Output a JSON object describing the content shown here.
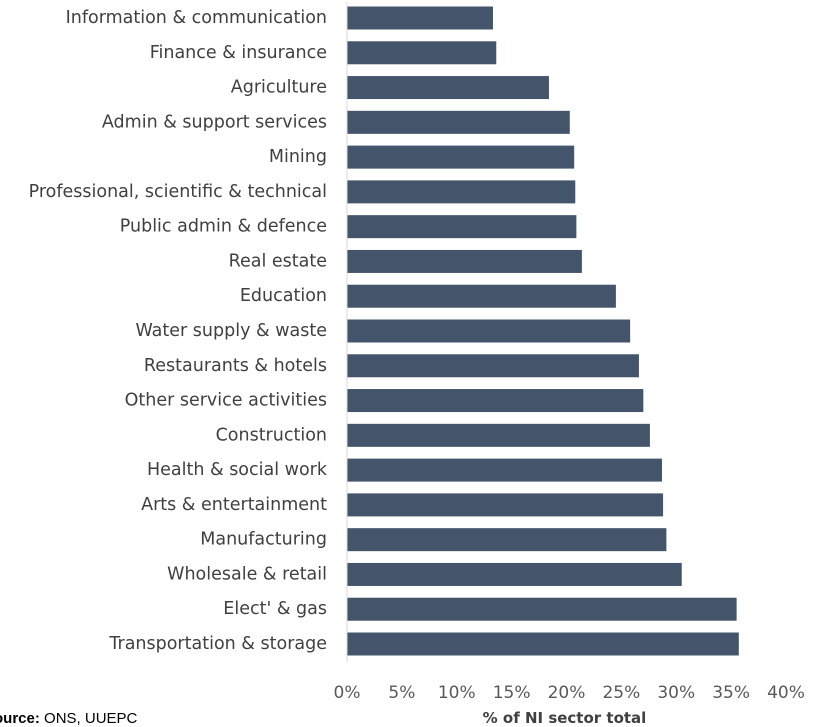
{
  "chart_data": {
    "type": "bar",
    "orientation": "horizontal",
    "categories": [
      "Information & communication",
      "Finance & insurance",
      "Agriculture",
      "Admin & support services",
      "Mining",
      "Professional, scientific & technical",
      "Public admin & defence",
      "Real estate",
      "Education",
      "Water supply & waste",
      "Restaurants & hotels",
      "Other service activities",
      "Construction",
      "Health & social work",
      "Arts & entertainment",
      "Manufacturing",
      "Wholesale & retail",
      "Elect' & gas",
      "Transportation & storage"
    ],
    "values": [
      13.3,
      13.6,
      18.4,
      20.3,
      20.7,
      20.8,
      20.9,
      21.4,
      24.5,
      25.8,
      26.6,
      27.0,
      27.6,
      28.7,
      28.8,
      29.1,
      30.5,
      35.5,
      35.7
    ],
    "xlabel": "% of NI sector total",
    "ylabel": "",
    "xlim": [
      0,
      40
    ],
    "x_ticks": [
      "0%",
      "5%",
      "10%",
      "15%",
      "20%",
      "25%",
      "30%",
      "35%",
      "40%"
    ],
    "bar_color": "#44546a",
    "grid": false,
    "legend": "none"
  },
  "source": {
    "label": "Source:",
    "text": " ONS, UUEPC"
  }
}
